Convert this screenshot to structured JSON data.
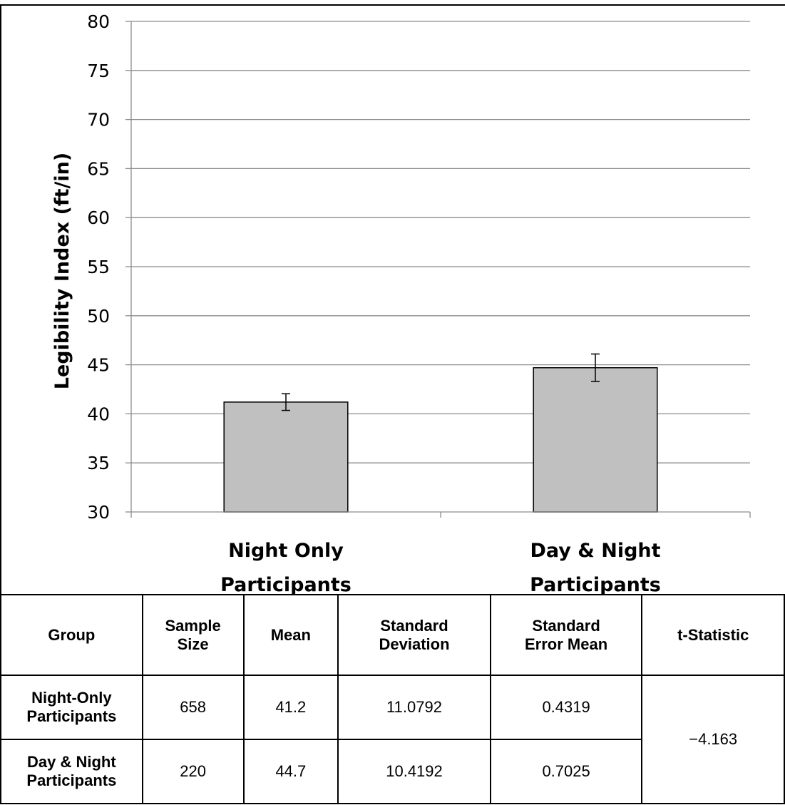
{
  "chart_data": {
    "type": "bar",
    "ylabel": "Legibility Index (ft/in)",
    "ylim": [
      30,
      80
    ],
    "yticks": [
      "30",
      "35",
      "40",
      "45",
      "50",
      "55",
      "60",
      "65",
      "70",
      "75",
      "80"
    ],
    "categories": [
      "Night Only\nParticipants",
      "Day & Night\nParticipants"
    ],
    "category_lines": [
      [
        "Night Only",
        "Participants"
      ],
      [
        "Day & Night",
        "Participants"
      ]
    ],
    "values": [
      41.2,
      44.7
    ],
    "error": [
      0.85,
      1.4
    ],
    "grid": true,
    "bar_color": "#c0c0c0"
  },
  "table": {
    "headers": [
      [
        "Group"
      ],
      [
        "Sample",
        "Size"
      ],
      [
        "Mean"
      ],
      [
        "Standard",
        "Deviation"
      ],
      [
        "Standard",
        "Error Mean"
      ],
      [
        "t-Statistic"
      ]
    ],
    "rows": [
      {
        "group": [
          "Night-Only",
          "Participants"
        ],
        "sample_size": "658",
        "mean": "41.2",
        "sd": "11.0792",
        "sem": "0.4319"
      },
      {
        "group": [
          "Day & Night",
          "Participants"
        ],
        "sample_size": "220",
        "mean": "44.7",
        "sd": "10.4192",
        "sem": "0.7025"
      }
    ],
    "t_statistic": "−4.163"
  }
}
